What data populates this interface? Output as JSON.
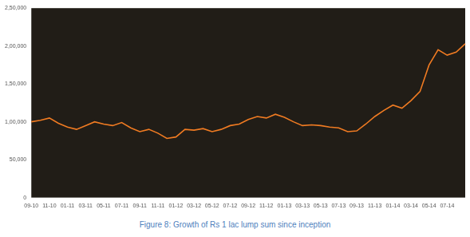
{
  "chart_data": {
    "type": "line",
    "title": "Figure 8: Growth of Rs 1 lac lump sum since inception",
    "categories": [
      "09-10",
      null,
      "11-10",
      null,
      "01-11",
      null,
      "03-11",
      null,
      "05-11",
      null,
      "07-11",
      null,
      "09-11",
      null,
      "11-11",
      null,
      "01-12",
      null,
      "03-12",
      null,
      "05-12",
      null,
      "07-12",
      null,
      "09-12",
      null,
      "11-12",
      null,
      "01-13",
      null,
      "03-13",
      null,
      "05-13",
      null,
      "07-13",
      null,
      "09-13",
      null,
      "11-13",
      null,
      "01-14",
      null,
      "03-14",
      null,
      "05-14",
      null,
      "07-14",
      null,
      null
    ],
    "values": [
      100000,
      102000,
      105000,
      98000,
      93000,
      90000,
      95000,
      100000,
      97000,
      95000,
      99000,
      92000,
      87000,
      90000,
      85000,
      78000,
      80000,
      90000,
      89000,
      91000,
      87000,
      90000,
      95000,
      97000,
      103000,
      107000,
      105000,
      110000,
      106000,
      100000,
      95000,
      96000,
      95000,
      93000,
      92000,
      87000,
      88000,
      97000,
      107000,
      115000,
      122000,
      118000,
      128000,
      140000,
      175000,
      195000,
      188000,
      192000,
      203000
    ],
    "color": "#f07b22",
    "ylim": [
      0,
      250000
    ],
    "yticks": [
      0,
      {
        "value": 50000,
        "label": "50,000"
      },
      {
        "value": 100000,
        "label": "1,00,000"
      },
      {
        "value": 150000,
        "label": "1,50,000"
      },
      {
        "value": 200000,
        "label": "2,00,000"
      },
      {
        "value": 250000,
        "label": "2,50,000"
      }
    ],
    "grid": false
  }
}
